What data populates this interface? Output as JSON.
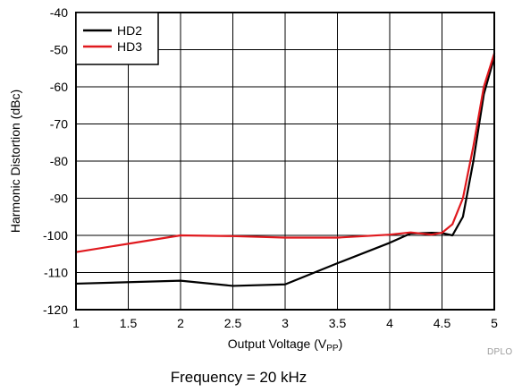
{
  "chart_data": {
    "type": "line",
    "title": "",
    "xlabel": "Output Voltage (V",
    "xlabel_sub": "PP",
    "xlabel_end": ")",
    "ylabel": "Harmonic Distortion (dBc)",
    "xlim": [
      1,
      5
    ],
    "ylim": [
      -120,
      -40
    ],
    "xticks": [
      1,
      1.5,
      2,
      2.5,
      3,
      3.5,
      4,
      4.5,
      5
    ],
    "xtick_labels": [
      "1",
      "1.5",
      "2",
      "2.5",
      "3",
      "3.5",
      "4",
      "4.5",
      "5"
    ],
    "yticks": [
      -120,
      -110,
      -100,
      -90,
      -80,
      -70,
      -60,
      -50,
      -40
    ],
    "ytick_labels": [
      "-120",
      "-110",
      "-100",
      "-90",
      "-80",
      "-70",
      "-60",
      "-50",
      "-40"
    ],
    "grid": true,
    "legend_position": "top-left",
    "series": [
      {
        "name": "HD2",
        "color": "#000000",
        "x": [
          1,
          2,
          2.5,
          3,
          3.5,
          4,
          4.2,
          4.4,
          4.5,
          4.6,
          4.7,
          4.8,
          4.9,
          5
        ],
        "y": [
          -113,
          -112.2,
          -113.6,
          -113.2,
          -107.5,
          -102,
          -99.5,
          -99.3,
          -99.4,
          -100,
          -95,
          -80,
          -62,
          -52
        ]
      },
      {
        "name": "HD3",
        "color": "#e0191e",
        "x": [
          1,
          2,
          2.5,
          3,
          3.5,
          4,
          4.2,
          4.4,
          4.5,
          4.6,
          4.7,
          4.8,
          4.9,
          5
        ],
        "y": [
          -104.5,
          -100,
          -100.2,
          -100.6,
          -100.6,
          -99.8,
          -99.2,
          -99.8,
          -99.3,
          -97,
          -90,
          -76,
          -60,
          -51
        ]
      }
    ]
  },
  "caption": "Frequency = 20 kHz",
  "corner_label": "DPLO"
}
